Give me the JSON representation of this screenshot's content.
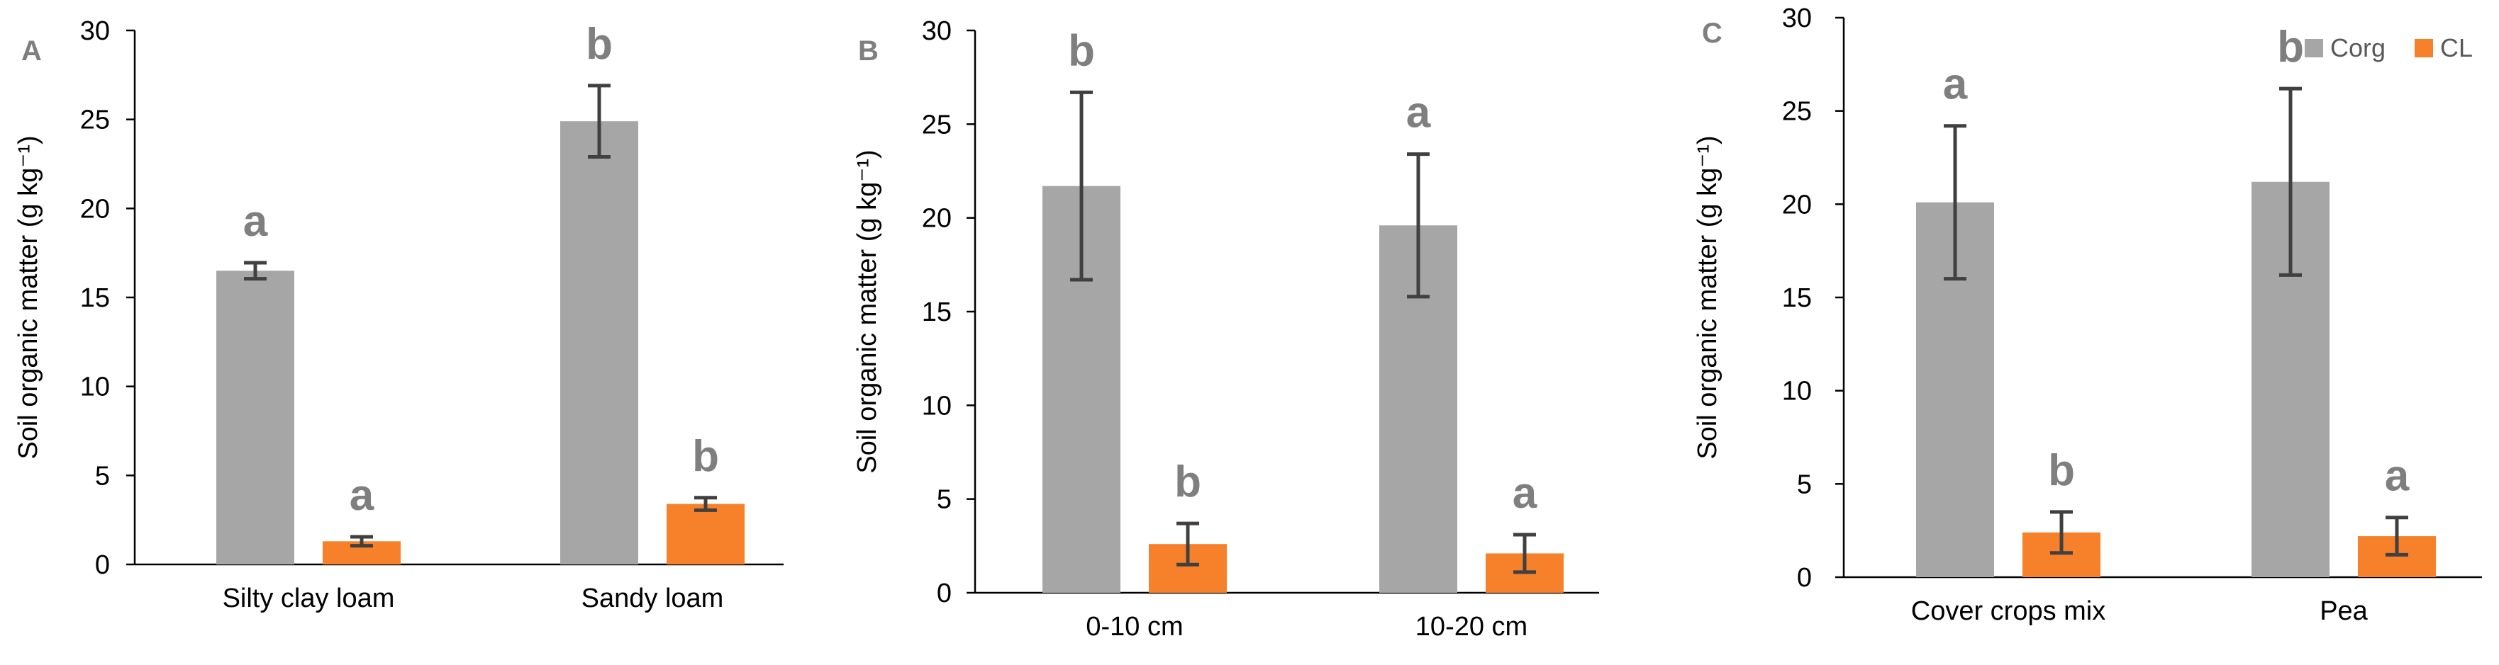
{
  "figure": {
    "legend": [
      {
        "label": "Corg",
        "color": "#a6a6a6"
      },
      {
        "label": "CL",
        "color": "#f6812a"
      }
    ]
  },
  "chart_data": [
    {
      "type": "bar",
      "panel_label": "A",
      "categories": [
        "Silty clay loam",
        "Sandy loam"
      ],
      "series": [
        {
          "name": "Corg",
          "color": "#a6a6a6",
          "values": [
            16.5,
            24.9
          ],
          "errors": [
            0.45,
            2.0
          ],
          "letters": [
            "a",
            "b"
          ]
        },
        {
          "name": "CL",
          "color": "#f6812a",
          "values": [
            1.3,
            3.4
          ],
          "errors": [
            0.25,
            0.35
          ],
          "letters": [
            "a",
            "b"
          ]
        }
      ],
      "ylabel": "Soil organic matter (g kg⁻¹)",
      "xlabel": "",
      "ylim": [
        0,
        30
      ],
      "yticks": [
        0,
        5,
        10,
        15,
        20,
        25,
        30
      ],
      "grid": false
    },
    {
      "type": "bar",
      "panel_label": "B",
      "categories": [
        "0-10 cm",
        "10-20 cm"
      ],
      "series": [
        {
          "name": "Corg",
          "color": "#a6a6a6",
          "values": [
            21.7,
            19.6
          ],
          "errors": [
            5.0,
            3.8
          ],
          "letters": [
            "b",
            "a"
          ]
        },
        {
          "name": "CL",
          "color": "#f6812a",
          "values": [
            2.6,
            2.1
          ],
          "errors": [
            1.1,
            1.0
          ],
          "letters": [
            "b",
            "a"
          ]
        }
      ],
      "ylabel": "Soil organic matter (g kg⁻¹)",
      "xlabel": "",
      "ylim": [
        0,
        30
      ],
      "yticks": [
        0,
        5,
        10,
        15,
        20,
        25,
        30
      ],
      "grid": false
    },
    {
      "type": "bar",
      "panel_label": "C",
      "categories": [
        "Cover crops mix",
        "Pea"
      ],
      "series": [
        {
          "name": "Corg",
          "color": "#a6a6a6",
          "values": [
            20.1,
            21.2
          ],
          "errors": [
            4.1,
            5.0
          ],
          "letters": [
            "a",
            "b"
          ]
        },
        {
          "name": "CL",
          "color": "#f6812a",
          "values": [
            2.4,
            2.2
          ],
          "errors": [
            1.1,
            1.0
          ],
          "letters": [
            "b",
            "a"
          ]
        }
      ],
      "ylabel": "Soil organic matter (g kg⁻¹)",
      "xlabel": "",
      "ylim": [
        0,
        30
      ],
      "yticks": [
        0,
        5,
        10,
        15,
        20,
        25,
        30
      ],
      "grid": false,
      "legend_position": "top-right"
    }
  ]
}
